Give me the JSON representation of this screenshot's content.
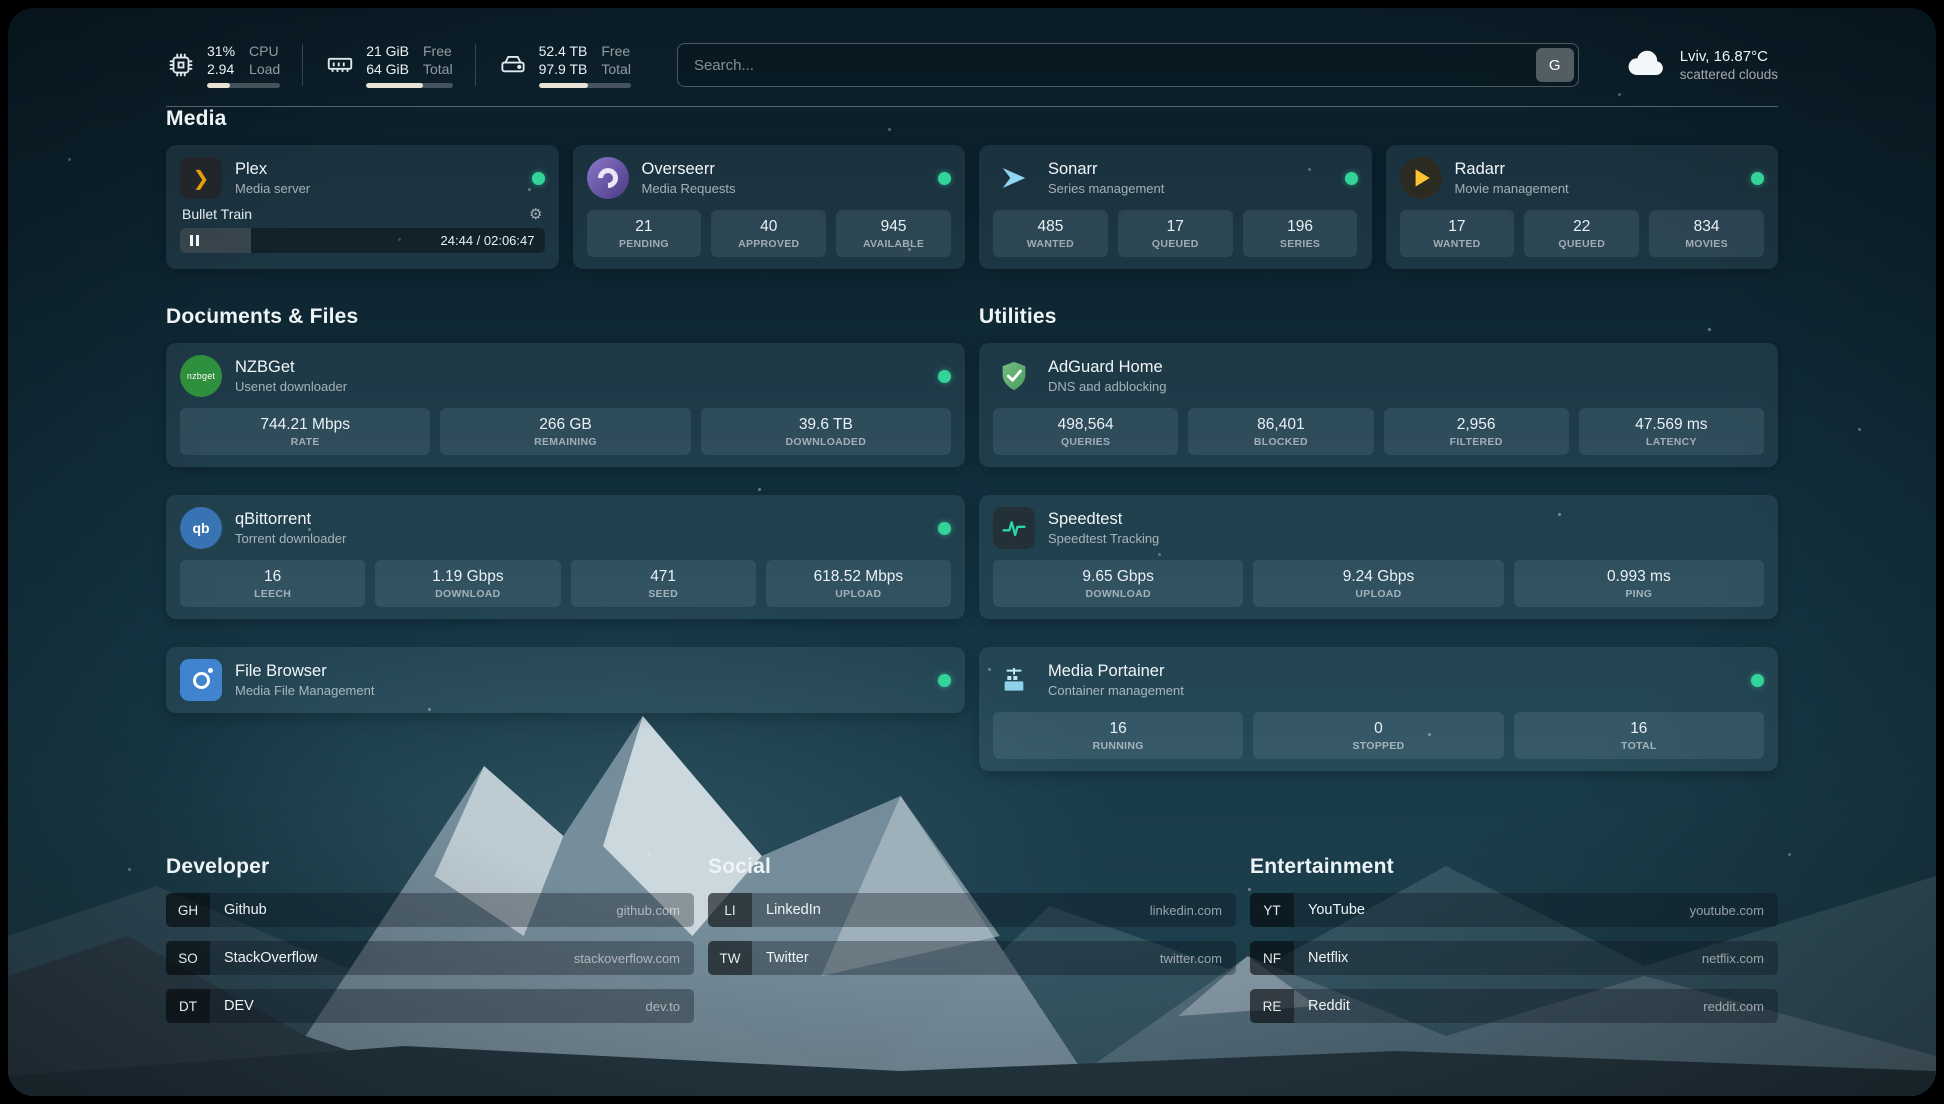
{
  "colors": {
    "status_online": "#34d399",
    "plex_accent": "#e5a00d",
    "adguard_green": "#67b279",
    "speedtest_green": "#2dd4a7"
  },
  "topbar": {
    "resources": [
      {
        "icon": "cpu-icon",
        "line1": "31%",
        "line2": "2.94",
        "label1": "CPU",
        "label2": "Load",
        "progress": 31
      },
      {
        "icon": "memory-icon",
        "line1": "21 GiB",
        "line2": "64 GiB",
        "label1": "Free",
        "label2": "Total",
        "progress": 66
      },
      {
        "icon": "disk-icon",
        "line1": "52.4 TB",
        "line2": "97.9 TB",
        "label1": "Free",
        "label2": "Total",
        "progress": 53
      }
    ],
    "search": {
      "placeholder": "Search...",
      "button": "G"
    },
    "weather": {
      "location": "Lviv, 16.87°C",
      "condition": "scattered clouds"
    }
  },
  "sections": {
    "media": {
      "title": "Media",
      "plex": {
        "name": "Plex",
        "subtitle": "Media server",
        "now_playing": "Bullet Train",
        "time": "24:44 / 02:06:47",
        "progress_percent": 19.5
      },
      "overseerr": {
        "name": "Overseerr",
        "subtitle": "Media Requests",
        "stats": [
          {
            "value": "21",
            "label": "PENDING"
          },
          {
            "value": "40",
            "label": "APPROVED"
          },
          {
            "value": "945",
            "label": "AVAILABLE"
          }
        ]
      },
      "sonarr": {
        "name": "Sonarr",
        "subtitle": "Series management",
        "stats": [
          {
            "value": "485",
            "label": "WANTED"
          },
          {
            "value": "17",
            "label": "QUEUED"
          },
          {
            "value": "196",
            "label": "SERIES"
          }
        ]
      },
      "radarr": {
        "name": "Radarr",
        "subtitle": "Movie management",
        "stats": [
          {
            "value": "17",
            "label": "WANTED"
          },
          {
            "value": "22",
            "label": "QUEUED"
          },
          {
            "value": "834",
            "label": "MOVIES"
          }
        ]
      }
    },
    "documents": {
      "title": "Documents & Files",
      "nzbget": {
        "name": "NZBGet",
        "subtitle": "Usenet downloader",
        "icon_text": "nzbget",
        "stats": [
          {
            "value": "744.21 Mbps",
            "label": "RATE"
          },
          {
            "value": "266 GB",
            "label": "REMAINING"
          },
          {
            "value": "39.6 TB",
            "label": "DOWNLOADED"
          }
        ]
      },
      "qbittorrent": {
        "name": "qBittorrent",
        "subtitle": "Torrent downloader",
        "icon_text": "qb",
        "stats": [
          {
            "value": "16",
            "label": "LEECH"
          },
          {
            "value": "1.19 Gbps",
            "label": "DOWNLOAD"
          },
          {
            "value": "471",
            "label": "SEED"
          },
          {
            "value": "618.52 Mbps",
            "label": "UPLOAD"
          }
        ]
      },
      "filebrowser": {
        "name": "File Browser",
        "subtitle": "Media File Management"
      }
    },
    "utilities": {
      "title": "Utilities",
      "adguard": {
        "name": "AdGuard Home",
        "subtitle": "DNS and adblocking",
        "stats": [
          {
            "value": "498,564",
            "label": "QUERIES"
          },
          {
            "value": "86,401",
            "label": "BLOCKED"
          },
          {
            "value": "2,956",
            "label": "FILTERED"
          },
          {
            "value": "47.569 ms",
            "label": "LATENCY"
          }
        ]
      },
      "speedtest": {
        "name": "Speedtest",
        "subtitle": "Speedtest Tracking",
        "stats": [
          {
            "value": "9.65 Gbps",
            "label": "DOWNLOAD"
          },
          {
            "value": "9.24 Gbps",
            "label": "UPLOAD"
          },
          {
            "value": "0.993 ms",
            "label": "PING"
          }
        ]
      },
      "portainer": {
        "name": "Media Portainer",
        "subtitle": "Container management",
        "stats": [
          {
            "value": "16",
            "label": "RUNNING"
          },
          {
            "value": "0",
            "label": "STOPPED"
          },
          {
            "value": "16",
            "label": "TOTAL"
          }
        ]
      }
    },
    "bookmarks": [
      {
        "title": "Developer",
        "items": [
          {
            "abbr": "GH",
            "name": "Github",
            "domain": "github.com"
          },
          {
            "abbr": "SO",
            "name": "StackOverflow",
            "domain": "stackoverflow.com"
          },
          {
            "abbr": "DT",
            "name": "DEV",
            "domain": "dev.to"
          }
        ]
      },
      {
        "title": "Social",
        "items": [
          {
            "abbr": "LI",
            "name": "LinkedIn",
            "domain": "linkedin.com"
          },
          {
            "abbr": "TW",
            "name": "Twitter",
            "domain": "twitter.com"
          }
        ]
      },
      {
        "title": "Entertainment",
        "items": [
          {
            "abbr": "YT",
            "name": "YouTube",
            "domain": "youtube.com"
          },
          {
            "abbr": "NF",
            "name": "Netflix",
            "domain": "netflix.com"
          },
          {
            "abbr": "RE",
            "name": "Reddit",
            "domain": "reddit.com"
          }
        ]
      }
    ]
  }
}
